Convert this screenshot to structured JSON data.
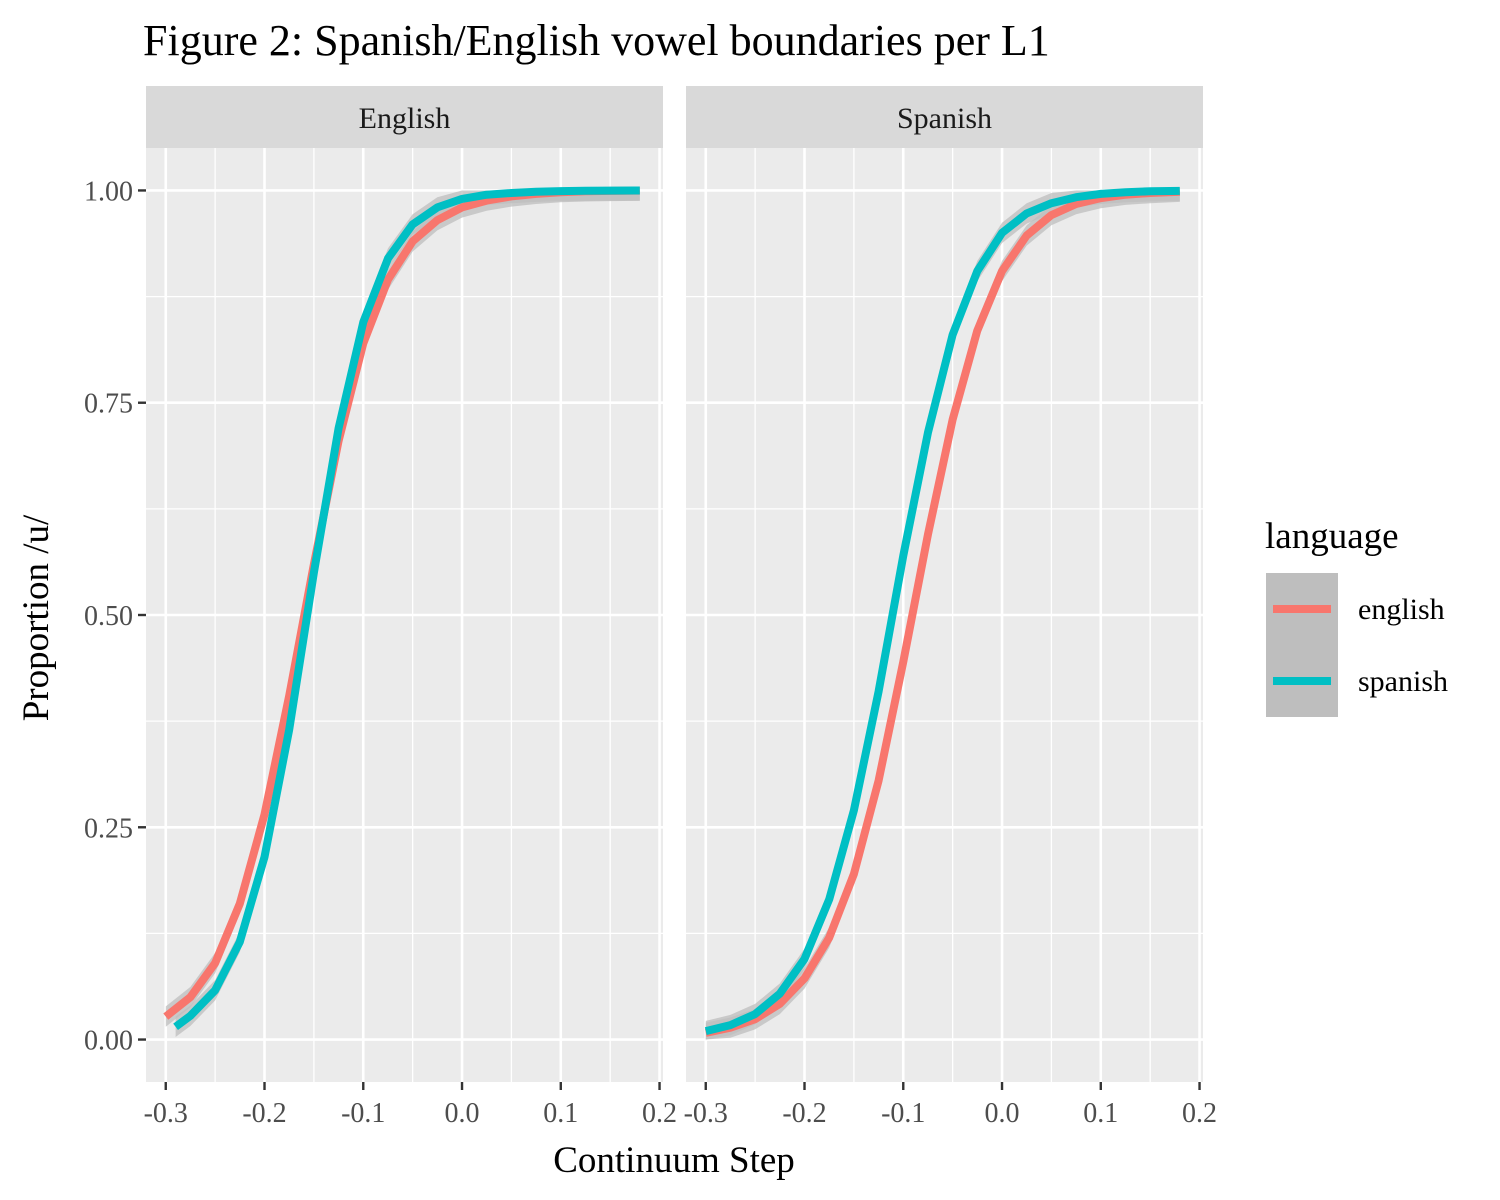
{
  "chart_data": {
    "type": "line",
    "title": "Figure 2: Spanish/English vowel boundaries per L1",
    "xlabel": "Continuum Step",
    "ylabel": "Proportion /u/",
    "xlim": [
      -0.3,
      0.2
    ],
    "ylim": [
      0,
      1
    ],
    "x_ticks": [
      "-0.3",
      "-0.2",
      "-0.1",
      "0.0",
      "0.1",
      "0.2"
    ],
    "y_ticks": [
      "0.00",
      "0.25",
      "0.50",
      "0.75",
      "1.00"
    ],
    "grid": true,
    "legend": {
      "title": "language",
      "position": "right",
      "entries": [
        "english",
        "spanish"
      ]
    },
    "colors": {
      "english": "#F8766D",
      "spanish": "#00BFC4",
      "ribbon": "#BEBEBE",
      "panel_bg": "#EBEBEB",
      "strip_bg": "#D9D9D9",
      "grid": "#FFFFFF"
    },
    "panels": [
      {
        "strip": "English",
        "series": [
          {
            "name": "english",
            "x": [
              -0.3,
              -0.275,
              -0.25,
              -0.225,
              -0.2,
              -0.175,
              -0.15,
              -0.125,
              -0.1,
              -0.075,
              -0.05,
              -0.025,
              0.0,
              0.025,
              0.05,
              0.075,
              0.1,
              0.125,
              0.15,
              0.18
            ],
            "y": [
              0.027,
              0.05,
              0.09,
              0.16,
              0.265,
              0.405,
              0.56,
              0.705,
              0.82,
              0.895,
              0.94,
              0.965,
              0.98,
              0.988,
              0.993,
              0.996,
              0.998,
              0.999,
              0.9995,
              0.9998
            ]
          },
          {
            "name": "spanish",
            "x": [
              -0.29,
              -0.275,
              -0.25,
              -0.225,
              -0.2,
              -0.175,
              -0.15,
              -0.125,
              -0.1,
              -0.075,
              -0.05,
              -0.025,
              0.0,
              0.025,
              0.05,
              0.075,
              0.1,
              0.125,
              0.15,
              0.18
            ],
            "y": [
              0.015,
              0.028,
              0.058,
              0.115,
              0.215,
              0.365,
              0.55,
              0.72,
              0.845,
              0.92,
              0.96,
              0.98,
              0.99,
              0.995,
              0.997,
              0.9985,
              0.9992,
              0.9996,
              0.9998,
              0.9999
            ]
          }
        ]
      },
      {
        "strip": "Spanish",
        "series": [
          {
            "name": "english",
            "x": [
              -0.3,
              -0.275,
              -0.25,
              -0.225,
              -0.2,
              -0.175,
              -0.15,
              -0.125,
              -0.1,
              -0.075,
              -0.05,
              -0.025,
              0.0,
              0.025,
              0.05,
              0.075,
              0.1,
              0.125,
              0.15,
              0.18
            ],
            "y": [
              0.008,
              0.014,
              0.024,
              0.042,
              0.072,
              0.12,
              0.195,
              0.305,
              0.445,
              0.595,
              0.73,
              0.835,
              0.905,
              0.947,
              0.971,
              0.984,
              0.991,
              0.995,
              0.997,
              0.9985
            ]
          },
          {
            "name": "spanish",
            "x": [
              -0.3,
              -0.275,
              -0.25,
              -0.225,
              -0.2,
              -0.175,
              -0.15,
              -0.125,
              -0.1,
              -0.075,
              -0.05,
              -0.025,
              0.0,
              0.025,
              0.05,
              0.075,
              0.1,
              0.125,
              0.15,
              0.18
            ],
            "y": [
              0.01,
              0.017,
              0.03,
              0.054,
              0.095,
              0.165,
              0.27,
              0.41,
              0.57,
              0.715,
              0.83,
              0.905,
              0.95,
              0.973,
              0.985,
              0.992,
              0.996,
              0.998,
              0.999,
              0.9995
            ]
          }
        ]
      }
    ]
  }
}
